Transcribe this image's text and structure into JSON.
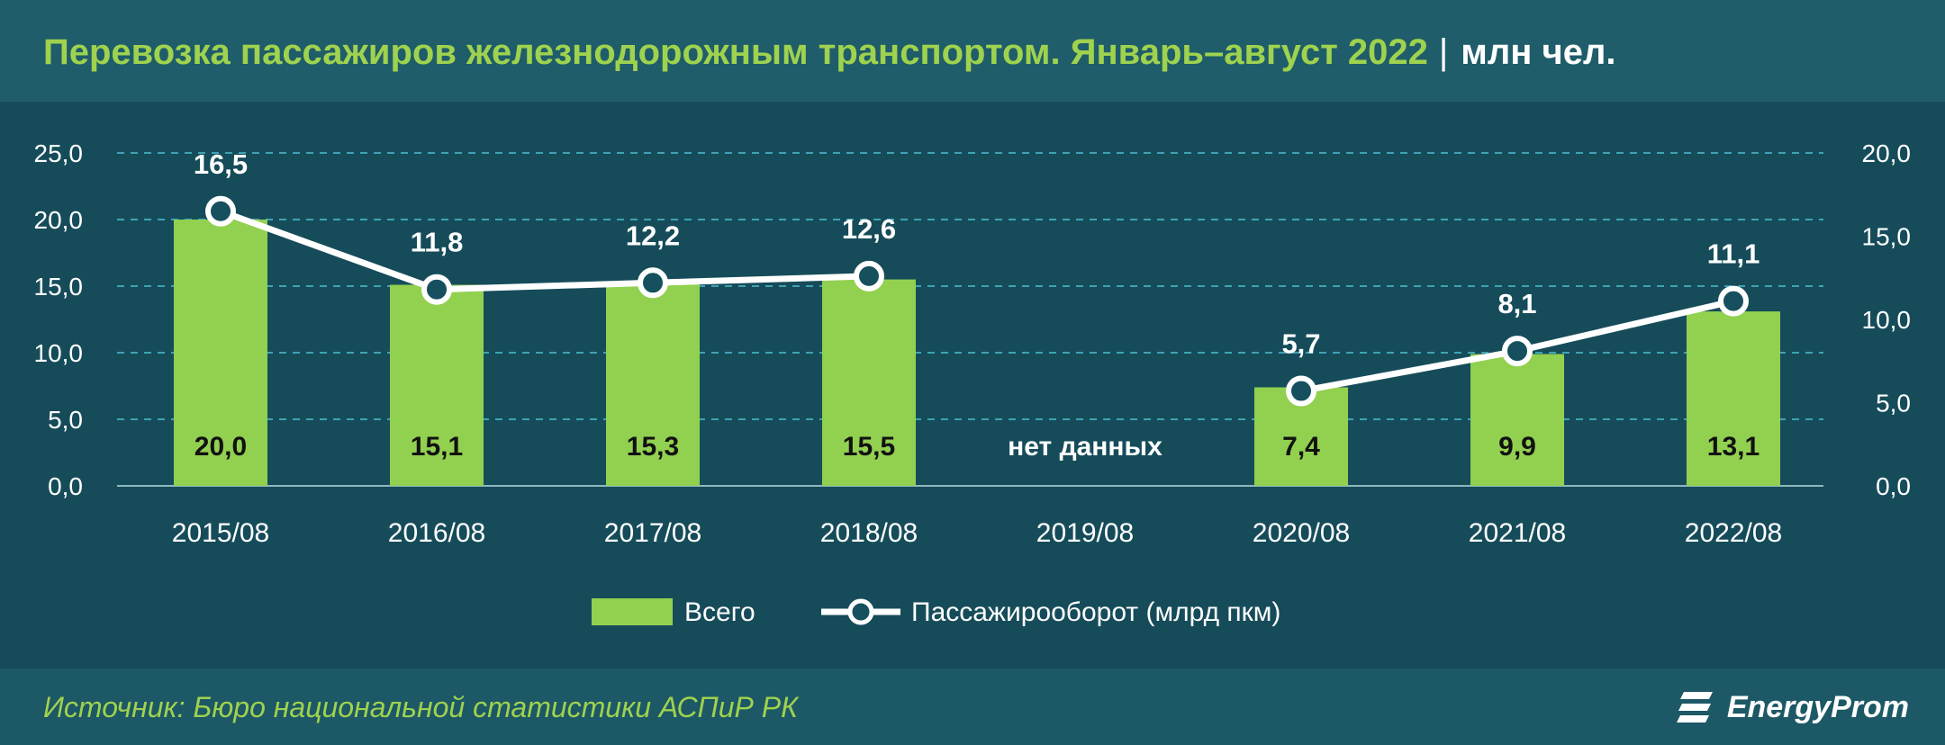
{
  "header": {
    "title": "Перевозка пассажиров железнодорожным транспортом. Январь–август 2022",
    "separator": "|",
    "unit": "млн чел."
  },
  "footer": {
    "source": "Источник: Бюро национальной статистики АСПиР РК",
    "brand": "EnergyProm"
  },
  "colors": {
    "background": "#16505e",
    "header_bg": "#1f5d6a",
    "footer_bg": "#1d5866",
    "title_green": "#9fd24e",
    "bar_green": "#92d050",
    "line_white": "#ffffff",
    "grid": "#3fa2b3"
  },
  "chart_data": {
    "type": "bar+line",
    "categories": [
      "2015/08",
      "2016/08",
      "2017/08",
      "2018/08",
      "2019/08",
      "2020/08",
      "2021/08",
      "2022/08"
    ],
    "series": [
      {
        "name": "Всего",
        "type": "bar",
        "axis": "left",
        "values": [
          20.0,
          15.1,
          15.3,
          15.5,
          null,
          7.4,
          9.9,
          13.1
        ],
        "labels": [
          "20,0",
          "15,1",
          "15,3",
          "15,5",
          "нет данных",
          "7,4",
          "9,9",
          "13,1"
        ]
      },
      {
        "name": "Пассажирооборот (млрд пкм)",
        "type": "line",
        "axis": "right",
        "values": [
          16.5,
          11.8,
          12.2,
          12.6,
          null,
          5.7,
          8.1,
          11.1
        ],
        "labels": [
          "16,5",
          "11,8",
          "12,2",
          "12,6",
          "",
          "5,7",
          "8,1",
          "11,1"
        ]
      }
    ],
    "y_left": {
      "ylim": [
        0,
        25
      ],
      "ticks": [
        "0,0",
        "5,0",
        "10,0",
        "15,0",
        "20,0",
        "25,0"
      ]
    },
    "y_right": {
      "ylim": [
        0,
        20
      ],
      "ticks": [
        "0,0",
        "5,0",
        "10,0",
        "15,0",
        "20,0"
      ]
    },
    "grid": true,
    "legend": "bottom-center"
  }
}
